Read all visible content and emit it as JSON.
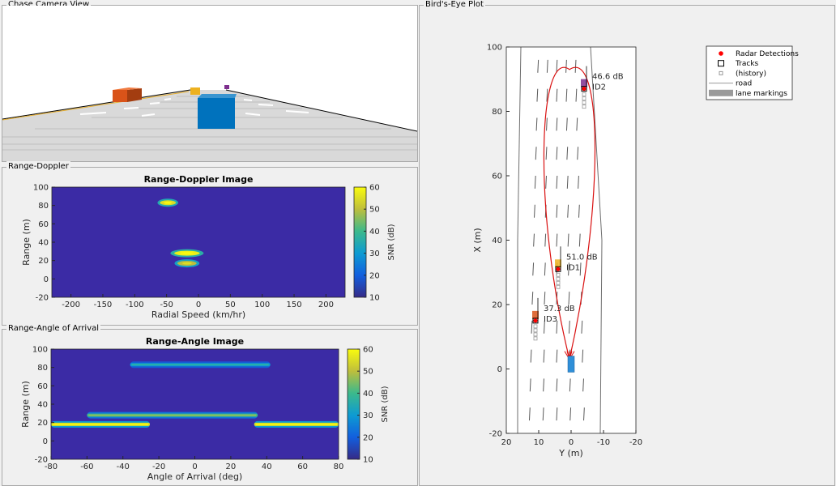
{
  "panels": {
    "chase_title": "Chase Camera View",
    "rd_title": "Range-Doppler",
    "ra_title": "Range-Angle of Arrival",
    "be_title": "Bird's-Eye Plot"
  },
  "chart_data": [
    {
      "type": "heatmap",
      "title": "Range-Doppler Image",
      "xlabel": "Radial Speed (km/hr)",
      "ylabel": "Range (m)",
      "xlim": [
        -230,
        230
      ],
      "ylim": [
        -20,
        100
      ],
      "xticks": [
        -200,
        -150,
        -100,
        -50,
        0,
        50,
        100,
        150,
        200
      ],
      "yticks": [
        100,
        80,
        60,
        40,
        20,
        0,
        -20
      ],
      "colorbar": {
        "label": "SNR (dB)",
        "ticks": [
          60,
          50,
          40,
          30,
          20,
          10
        ],
        "range": [
          10,
          60
        ]
      },
      "background_color": "#3b2ba5",
      "blobs": [
        {
          "x": -48,
          "y": 83,
          "width": 25,
          "snr": 55
        },
        {
          "x": -18,
          "y": 28,
          "width": 40,
          "snr": 58
        },
        {
          "x": -18,
          "y": 17,
          "width": 30,
          "snr": 50
        }
      ]
    },
    {
      "type": "heatmap",
      "title": "Range-Angle Image",
      "xlabel": "Angle of Arrival (deg)",
      "ylabel": "Range (m)",
      "xlim": [
        -80,
        80
      ],
      "ylim": [
        -20,
        100
      ],
      "xticks": [
        -80,
        -60,
        -40,
        -20,
        0,
        20,
        40,
        60,
        80
      ],
      "yticks": [
        100,
        80,
        60,
        40,
        20,
        0,
        -20
      ],
      "colorbar": {
        "label": "SNR (dB)",
        "ticks": [
          60,
          50,
          40,
          30,
          20,
          10
        ],
        "range": [
          10,
          60
        ]
      },
      "background_color": "#3b2ba5",
      "streaks": [
        {
          "x0": -36,
          "x1": 42,
          "y": 83,
          "snr": 30
        },
        {
          "x0": -60,
          "x1": 35,
          "y": 28,
          "snr": 40
        },
        {
          "x0": -80,
          "x1": -25,
          "y": 18,
          "snr": 55
        },
        {
          "x0": 33,
          "x1": 80,
          "y": 18,
          "snr": 55
        }
      ]
    },
    {
      "type": "scatter",
      "title": "",
      "xlabel": "Y (m)",
      "ylabel": "X (m)",
      "xlim": [
        20,
        -20
      ],
      "ylim": [
        -20,
        100
      ],
      "xticks": [
        20,
        10,
        0,
        -10,
        -20
      ],
      "yticks": [
        100,
        80,
        60,
        40,
        20,
        0,
        -20
      ],
      "detections": [
        {
          "y": -4,
          "x": 87
        },
        {
          "y": 4,
          "x": 31
        },
        {
          "y": 11,
          "x": 15
        }
      ],
      "tracks": [
        {
          "id": "ID2",
          "snr": "46.6 dB",
          "y": -4,
          "x": 87
        },
        {
          "id": "ID1",
          "snr": "51.0 dB",
          "y": 4,
          "x": 31
        },
        {
          "id": "ID3",
          "snr": "37.3 dB",
          "y": 11,
          "x": 15
        }
      ],
      "legend": [
        {
          "label": "Radar Detections",
          "symbol": "red-marker"
        },
        {
          "label": "Tracks",
          "symbol": "black-square"
        },
        {
          "label": "(history)",
          "symbol": "gray-square"
        },
        {
          "label": "road",
          "symbol": "thin-line"
        },
        {
          "label": "lane markings",
          "symbol": "gray-bar"
        }
      ]
    }
  ]
}
